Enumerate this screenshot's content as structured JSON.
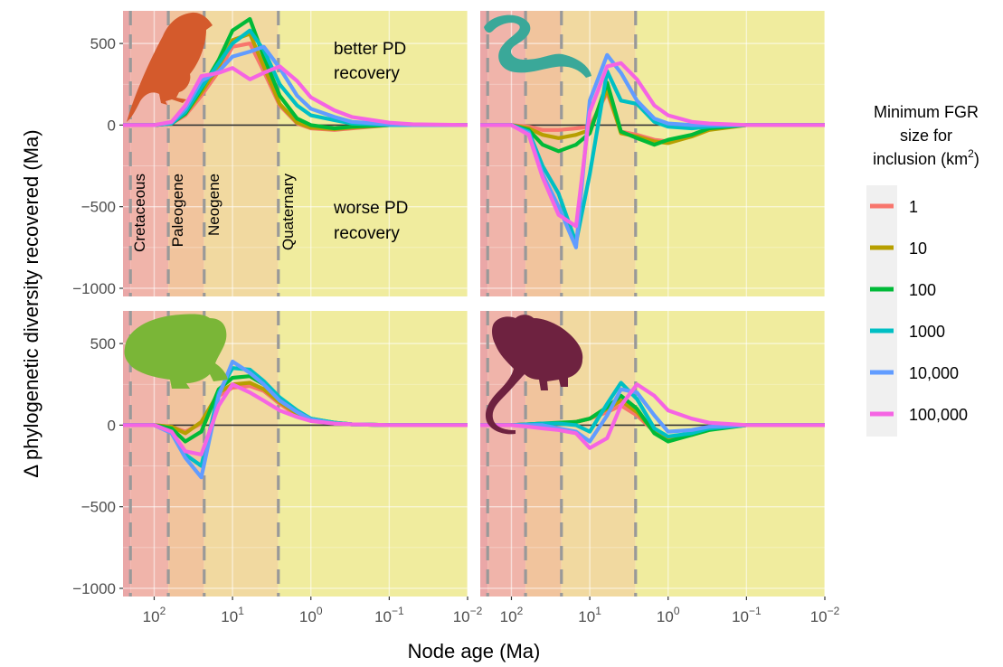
{
  "chart_data": {
    "type": "line",
    "xlabel": "Node age (Ma)",
    "ylabel": "Δ phylogenetic diversity recovered (Ma)",
    "x_scale": "log-reversed",
    "xlim": [
      250,
      0.01
    ],
    "ylim": [
      -1050,
      700
    ],
    "x_ticks": [
      {
        "value": 100,
        "base": "10",
        "exp": "2"
      },
      {
        "value": 10,
        "base": "10",
        "exp": "1"
      },
      {
        "value": 1,
        "base": "10",
        "exp": "0"
      },
      {
        "value": 0.1,
        "base": "10",
        "exp": "−1"
      },
      {
        "value": 0.01,
        "base": "10",
        "exp": "−2"
      }
    ],
    "y_ticks": [
      {
        "value": 500,
        "label": "500"
      },
      {
        "value": 0,
        "label": "0"
      },
      {
        "value": -500,
        "label": "−500"
      },
      {
        "value": -1000,
        "label": "−1000"
      }
    ],
    "boundaries": [
      201,
      66,
      23,
      2.6
    ],
    "periods": [
      {
        "label": "Cretaceous",
        "from": 201,
        "to": 66,
        "color": "#f0b4aa"
      },
      {
        "label": "Paleogene",
        "from": 66,
        "to": 23,
        "color": "#f1c49d"
      },
      {
        "label": "Neogene",
        "from": 23,
        "to": 2.6,
        "color": "#f1d9a0"
      },
      {
        "label": "Quaternary",
        "from": 2.6,
        "to": 0.01,
        "color": "#f0ec9e"
      }
    ],
    "pre_period_color": "#eaa7a7",
    "annotations": {
      "better": [
        "better PD",
        "recovery"
      ],
      "worse": [
        "worse PD",
        "recovery"
      ]
    },
    "legend": {
      "title_line1": "Minimum FGR",
      "title_line2": "size for",
      "title_line3a": "inclusion (km",
      "title_sup": "2",
      "title_line3b": ")",
      "position": "right"
    },
    "series_meta": [
      {
        "name": "1",
        "color": "#f8766d"
      },
      {
        "name": "10",
        "color": "#b79f00"
      },
      {
        "name": "100",
        "color": "#00ba38"
      },
      {
        "name": "1000",
        "color": "#00bfc4"
      },
      {
        "name": "10,000",
        "color": "#619cff"
      },
      {
        "name": "100,000",
        "color": "#f564e3"
      }
    ],
    "x": [
      250,
      100,
      60,
      40,
      25,
      15,
      10,
      6,
      4,
      2.5,
      1.5,
      1,
      0.5,
      0.3,
      0.1,
      0.05,
      0.01
    ],
    "panels": [
      {
        "id": "birds",
        "icon": "bird-icon",
        "icon_color": "#d45a2c",
        "series": [
          {
            "name": "1",
            "values": [
              0,
              0,
              10,
              60,
              180,
              330,
              480,
              500,
              330,
              120,
              10,
              -20,
              -30,
              -20,
              0,
              0,
              0
            ]
          },
          {
            "name": "10",
            "values": [
              0,
              0,
              10,
              70,
              200,
              360,
              520,
              560,
              360,
              130,
              15,
              -15,
              -25,
              -15,
              0,
              0,
              0
            ]
          },
          {
            "name": "100",
            "values": [
              0,
              0,
              10,
              70,
              220,
              400,
              580,
              650,
              420,
              180,
              40,
              0,
              -20,
              -10,
              0,
              0,
              0
            ]
          },
          {
            "name": "1000",
            "values": [
              0,
              0,
              10,
              80,
              230,
              380,
              500,
              580,
              460,
              250,
              120,
              60,
              30,
              10,
              0,
              0,
              0
            ]
          },
          {
            "name": "10,000",
            "values": [
              0,
              0,
              15,
              100,
              270,
              330,
              420,
              450,
              480,
              350,
              180,
              100,
              50,
              20,
              5,
              0,
              0
            ]
          },
          {
            "name": "100,000",
            "values": [
              0,
              0,
              20,
              120,
              300,
              320,
              350,
              280,
              320,
              360,
              270,
              170,
              90,
              50,
              15,
              5,
              0
            ]
          }
        ]
      },
      {
        "id": "reptiles",
        "icon": "snake-icon",
        "icon_color": "#3aa899",
        "series": [
          {
            "name": "1",
            "values": [
              0,
              0,
              -10,
              -30,
              -30,
              -20,
              -10,
              200,
              -40,
              -60,
              -90,
              -100,
              -60,
              -20,
              0,
              0,
              0
            ]
          },
          {
            "name": "10",
            "values": [
              0,
              0,
              -20,
              -60,
              -80,
              -60,
              -30,
              220,
              -50,
              -70,
              -100,
              -110,
              -70,
              -30,
              0,
              0,
              0
            ]
          },
          {
            "name": "100",
            "values": [
              0,
              0,
              -30,
              -120,
              -160,
              -120,
              -50,
              260,
              -40,
              -80,
              -120,
              -90,
              -60,
              -20,
              0,
              0,
              0
            ]
          },
          {
            "name": "1000",
            "values": [
              0,
              0,
              -40,
              -250,
              -420,
              -720,
              -300,
              330,
              150,
              130,
              20,
              -10,
              -20,
              -10,
              0,
              0,
              0
            ]
          },
          {
            "name": "10,000",
            "values": [
              0,
              0,
              -50,
              -300,
              -500,
              -750,
              150,
              430,
              320,
              150,
              40,
              10,
              0,
              0,
              0,
              0,
              0
            ]
          },
          {
            "name": "100,000",
            "values": [
              0,
              0,
              -60,
              -320,
              -550,
              -620,
              80,
              360,
              380,
              280,
              120,
              60,
              20,
              10,
              0,
              0,
              0
            ]
          }
        ]
      },
      {
        "id": "amphibians",
        "icon": "frog-icon",
        "icon_color": "#7ab637",
        "series": [
          {
            "name": "1",
            "values": [
              0,
              0,
              -10,
              -40,
              10,
              180,
              230,
              240,
              210,
              130,
              60,
              30,
              10,
              5,
              0,
              0,
              0
            ]
          },
          {
            "name": "10",
            "values": [
              0,
              0,
              -10,
              -50,
              20,
              200,
              250,
              260,
              220,
              140,
              70,
              35,
              15,
              5,
              0,
              0,
              0
            ]
          },
          {
            "name": "100",
            "values": [
              0,
              0,
              -20,
              -100,
              -40,
              220,
              290,
              300,
              250,
              160,
              80,
              40,
              15,
              5,
              0,
              0,
              0
            ]
          },
          {
            "name": "1000",
            "values": [
              0,
              0,
              -40,
              -180,
              -250,
              200,
              350,
              340,
              270,
              170,
              90,
              40,
              15,
              5,
              0,
              0,
              0
            ]
          },
          {
            "name": "10,000",
            "values": [
              0,
              0,
              -50,
              -200,
              -320,
              180,
              390,
              320,
              250,
              150,
              80,
              35,
              10,
              5,
              0,
              0,
              0
            ]
          },
          {
            "name": "100,000",
            "values": [
              0,
              0,
              -40,
              -160,
              -180,
              120,
              250,
              200,
              150,
              90,
              50,
              25,
              10,
              5,
              0,
              0,
              0
            ]
          }
        ]
      },
      {
        "id": "mammals",
        "icon": "mouse-icon",
        "icon_color": "#6e2240",
        "series": [
          {
            "name": "1",
            "values": [
              0,
              0,
              5,
              10,
              10,
              20,
              40,
              80,
              120,
              60,
              -40,
              -80,
              -50,
              -20,
              0,
              0,
              0
            ]
          },
          {
            "name": "10",
            "values": [
              0,
              0,
              5,
              10,
              10,
              20,
              40,
              100,
              150,
              80,
              -40,
              -90,
              -60,
              -25,
              0,
              0,
              0
            ]
          },
          {
            "name": "100",
            "values": [
              0,
              0,
              5,
              10,
              15,
              20,
              40,
              110,
              180,
              100,
              -50,
              -100,
              -60,
              -30,
              0,
              0,
              0
            ]
          },
          {
            "name": "1000",
            "values": [
              0,
              0,
              5,
              10,
              10,
              0,
              -40,
              130,
              260,
              160,
              -20,
              -70,
              -50,
              -20,
              0,
              0,
              0
            ]
          },
          {
            "name": "10,000",
            "values": [
              0,
              0,
              0,
              0,
              -20,
              -40,
              -100,
              60,
              220,
              200,
              60,
              -40,
              -30,
              -10,
              0,
              0,
              0
            ]
          },
          {
            "name": "100,000",
            "values": [
              0,
              0,
              -10,
              -20,
              -30,
              -50,
              -140,
              -80,
              120,
              250,
              180,
              90,
              40,
              15,
              0,
              0,
              0
            ]
          }
        ]
      }
    ]
  }
}
